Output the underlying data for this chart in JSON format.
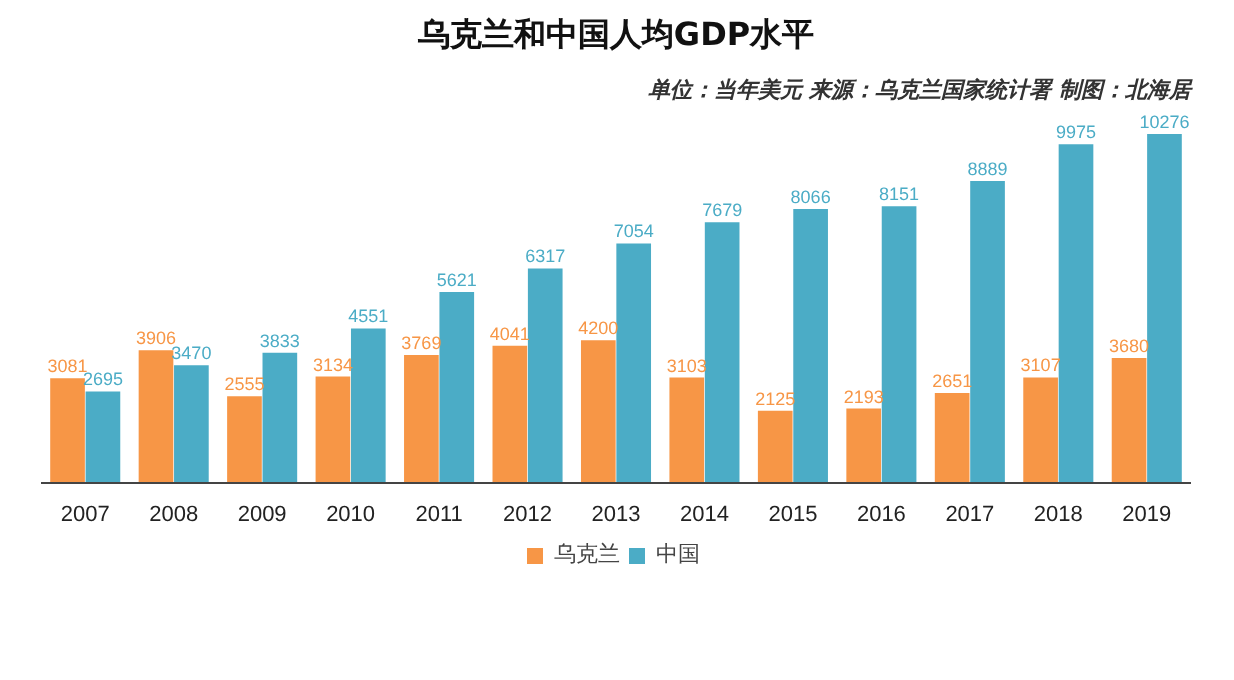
{
  "chart_data": {
    "type": "bar",
    "title": "乌克兰和中国人均GDP水平",
    "subtitle": "单位：当年美元 来源：乌克兰国家统计署 制图：北海居",
    "categories": [
      "2007",
      "2008",
      "2009",
      "2010",
      "2011",
      "2012",
      "2013",
      "2014",
      "2015",
      "2016",
      "2017",
      "2018",
      "2019"
    ],
    "series": [
      {
        "name": "乌克兰",
        "color": "#f79646",
        "values": [
          3081,
          3906,
          2555,
          3134,
          3769,
          4041,
          4200,
          3103,
          2125,
          2193,
          2651,
          3107,
          3680
        ]
      },
      {
        "name": "中国",
        "color": "#4bacc6",
        "values": [
          2695,
          3470,
          3833,
          4551,
          5621,
          6317,
          7054,
          7679,
          8066,
          8151,
          8889,
          9975,
          10276
        ]
      }
    ],
    "data_labels": true,
    "tick_labels": "x",
    "legend": "bottom"
  }
}
